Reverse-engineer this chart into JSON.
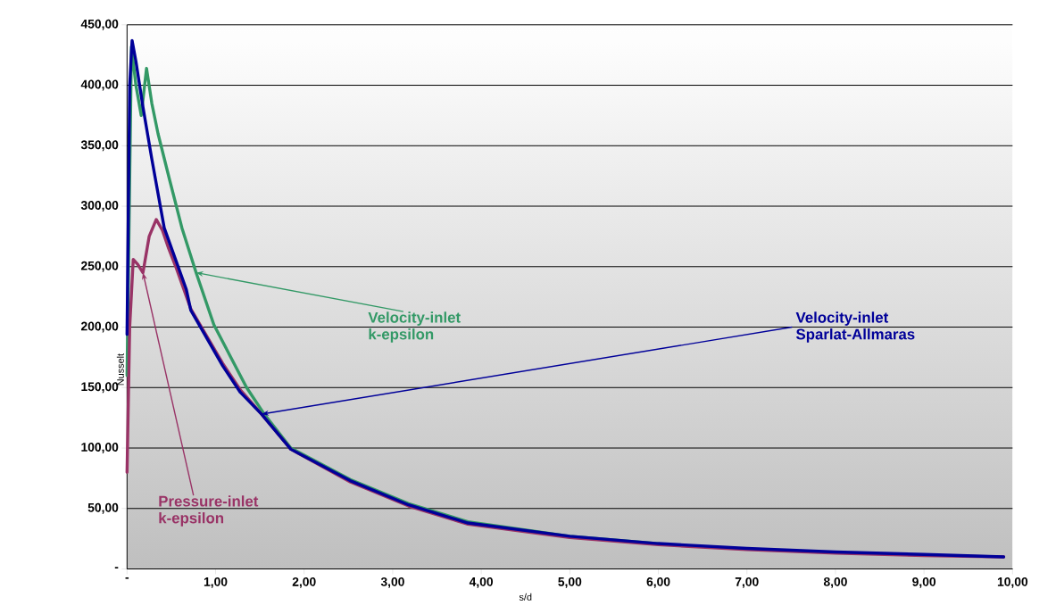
{
  "chart_data": {
    "type": "line",
    "xlabel": "s/d",
    "ylabel": "Nusselt",
    "xlim": [
      0,
      10
    ],
    "ylim": [
      0,
      450
    ],
    "xticks": [
      {
        "value": 0,
        "label": "-"
      },
      {
        "value": 1,
        "label": "1,00"
      },
      {
        "value": 2,
        "label": "2,00"
      },
      {
        "value": 3,
        "label": "3,00"
      },
      {
        "value": 4,
        "label": "4,00"
      },
      {
        "value": 5,
        "label": "5,00"
      },
      {
        "value": 6,
        "label": "6,00"
      },
      {
        "value": 7,
        "label": "7,00"
      },
      {
        "value": 8,
        "label": "8,00"
      },
      {
        "value": 9,
        "label": "9,00"
      },
      {
        "value": 10,
        "label": "10,00"
      }
    ],
    "yticks": [
      {
        "value": 0,
        "label": "-"
      },
      {
        "value": 50,
        "label": "50,00"
      },
      {
        "value": 100,
        "label": "100,00"
      },
      {
        "value": 150,
        "label": "150,00"
      },
      {
        "value": 200,
        "label": "200,00"
      },
      {
        "value": 250,
        "label": "250,00"
      },
      {
        "value": 300,
        "label": "300,00"
      },
      {
        "value": 350,
        "label": "350,00"
      },
      {
        "value": 400,
        "label": "400,00"
      },
      {
        "value": 450,
        "label": "450,00"
      }
    ],
    "grid": "y",
    "legend": false,
    "marker": "none",
    "series": [
      {
        "name": "Velocity-inlet k-epsilon",
        "color": "#339966",
        "x": [
          0,
          0.05,
          0.1,
          0.16,
          0.22,
          0.28,
          0.35,
          0.48,
          0.62,
          0.78,
          0.98,
          1.35,
          1.55,
          1.85,
          2.52,
          3.18,
          3.85,
          5,
          6
        ],
        "values": [
          160,
          432,
          400,
          375,
          414,
          385,
          360,
          322,
          282,
          245,
          202,
          150,
          128,
          100,
          74,
          54,
          39,
          27,
          21
        ]
      },
      {
        "name": "Pressure-inlet k-epsilon",
        "color": "#993366",
        "x": [
          0,
          0.03,
          0.07,
          0.12,
          0.18,
          0.25,
          0.33,
          0.4,
          0.47,
          0.55,
          0.72,
          1.08,
          1.28,
          1.52,
          1.85,
          2.52,
          3.18,
          3.85,
          5,
          6,
          7,
          8,
          9,
          9.9
        ],
        "values": [
          80,
          200,
          256,
          252,
          245,
          275,
          289,
          280,
          265,
          250,
          215,
          170,
          148,
          128,
          99,
          72,
          52,
          37,
          26,
          20,
          16,
          13,
          11,
          10
        ]
      },
      {
        "name": "Velocity-inlet Sparlat-Allmaras",
        "color": "#000099",
        "x": [
          0,
          0.03,
          0.057,
          0.1,
          0.18,
          0.28,
          0.42,
          0.67,
          0.72,
          1.08,
          1.28,
          1.52,
          1.85,
          2.52,
          3.18,
          3.85,
          5,
          6,
          7,
          8,
          9,
          9.9
        ],
        "values": [
          194,
          400,
          437,
          420,
          382,
          339,
          282,
          231,
          214,
          168,
          146,
          128,
          99,
          73,
          53,
          38,
          27,
          21,
          17,
          14,
          12,
          10
        ]
      }
    ]
  }
}
